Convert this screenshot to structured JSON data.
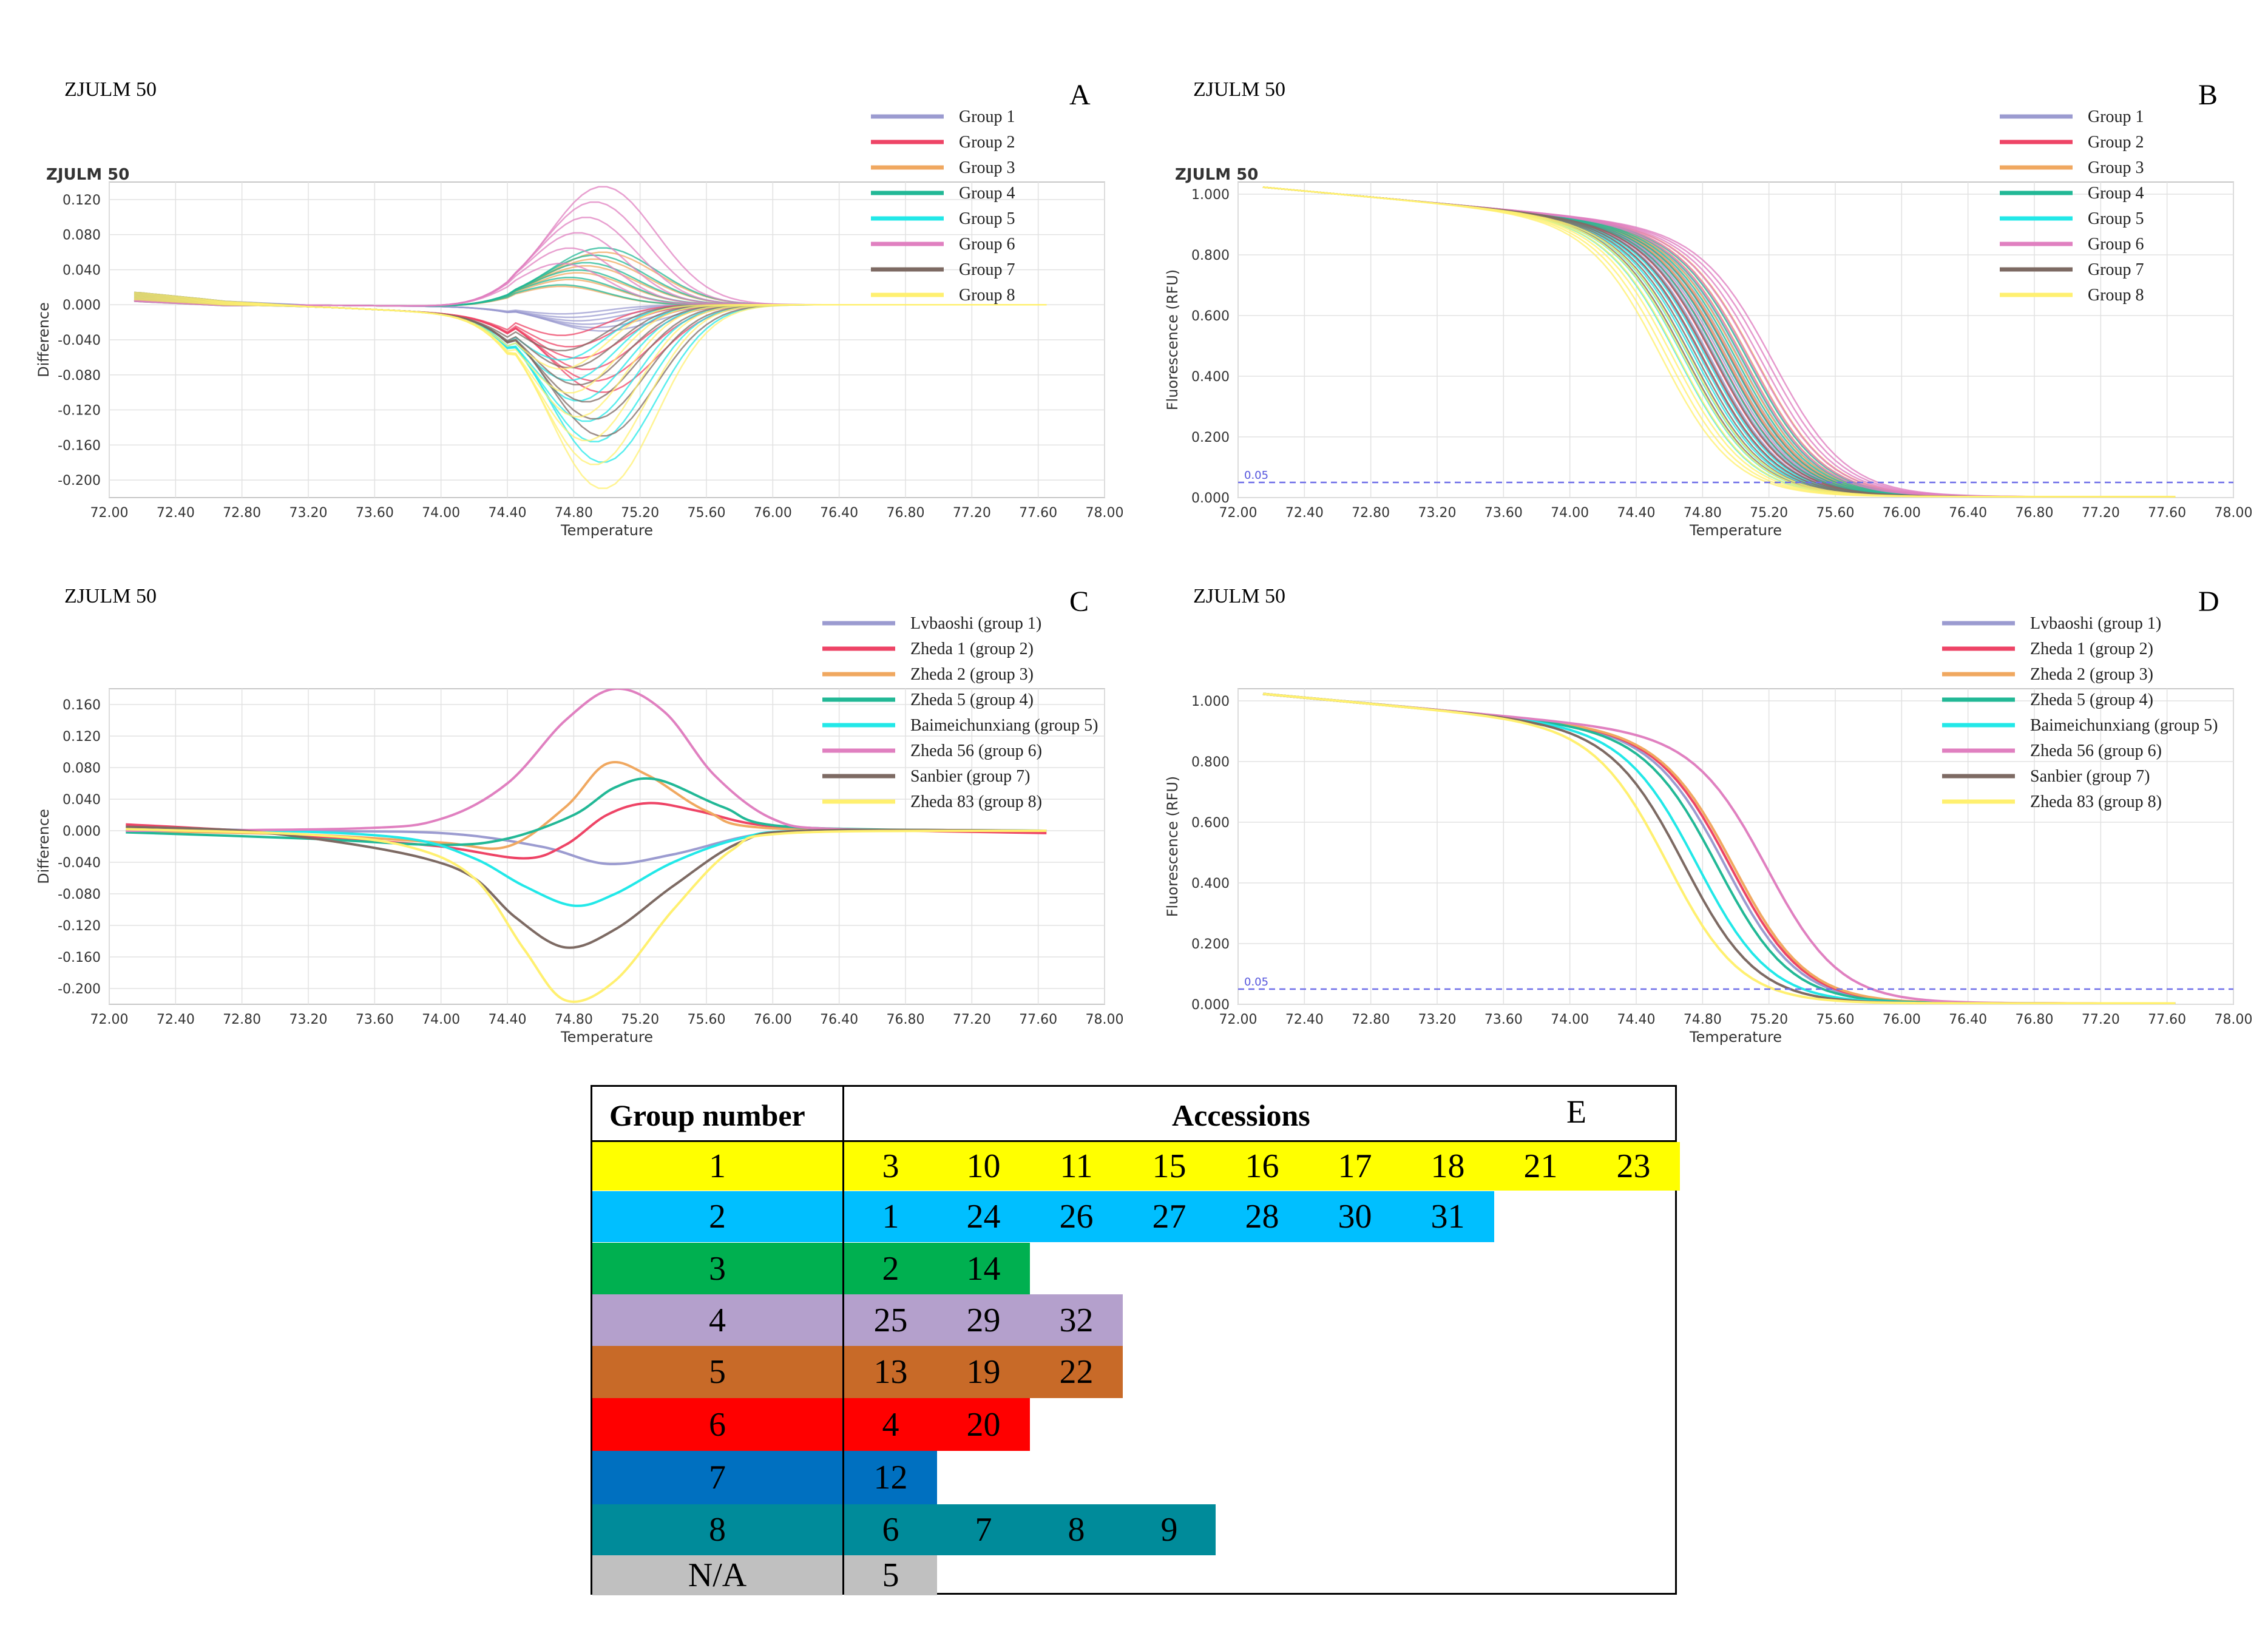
{
  "panels": [
    {
      "id": "A",
      "label": "ZJULM 50",
      "letter": "A",
      "chart_title": "ZJULM 50",
      "xlabel": "Temperature",
      "ylabel": "Difference",
      "xticks": [
        "72.00",
        "72.40",
        "72.80",
        "73.20",
        "73.60",
        "74.00",
        "74.40",
        "74.80",
        "75.20",
        "75.60",
        "76.00",
        "76.40",
        "76.80",
        "77.20",
        "77.60",
        "78.00"
      ],
      "yticks": [
        "0.120",
        "0.080",
        "0.040",
        "0.000",
        "-0.040",
        "-0.080",
        "-0.120",
        "-0.160",
        "-0.200"
      ],
      "legend": [
        "Group 1",
        "Group 2",
        "Group 3",
        "Group 4",
        "Group 5",
        "Group 6",
        "Group 7",
        "Group 8"
      ]
    },
    {
      "id": "B",
      "label": "ZJULM 50",
      "letter": "B",
      "chart_title": "ZJULM 50",
      "xlabel": "Temperature",
      "ylabel": "Fluorescence (RFU)",
      "xticks": [
        "72.00",
        "72.40",
        "72.80",
        "73.20",
        "73.60",
        "74.00",
        "74.40",
        "74.80",
        "75.20",
        "75.60",
        "76.00",
        "76.40",
        "76.80",
        "77.20",
        "77.60",
        "78.00"
      ],
      "yticks": [
        "1.000",
        "0.800",
        "0.600",
        "0.400",
        "0.200",
        "0.000"
      ],
      "threshold_label": "0.05",
      "legend": [
        "Group 1",
        "Group 2",
        "Group 3",
        "Group 4",
        "Group 5",
        "Group 6",
        "Group 7",
        "Group 8"
      ]
    },
    {
      "id": "C",
      "label": "ZJULM 50",
      "letter": "C",
      "chart_title": "",
      "xlabel": "Temperature",
      "ylabel": "Difference",
      "xticks": [
        "72.00",
        "72.40",
        "72.80",
        "73.20",
        "73.60",
        "74.00",
        "74.40",
        "74.80",
        "75.20",
        "75.60",
        "76.00",
        "76.40",
        "76.80",
        "77.20",
        "77.60",
        "78.00"
      ],
      "yticks": [
        "0.160",
        "0.120",
        "0.080",
        "0.040",
        "0.000",
        "-0.040",
        "-0.080",
        "-0.120",
        "-0.160",
        "-0.200"
      ],
      "legend": [
        "Lvbaoshi (group 1)",
        "Zheda 1 (group 2)",
        "Zheda 2 (group 3)",
        "Zheda 5 (group 4)",
        "Baimeichunxiang (group 5)",
        "Zheda 56 (group 6)",
        "Sanbier (group 7)",
        "Zheda 83 (group 8)"
      ]
    },
    {
      "id": "D",
      "label": "ZJULM 50",
      "letter": "D",
      "chart_title": "",
      "xlabel": "Temperature",
      "ylabel": "Fluorescence (RFU)",
      "xticks": [
        "72.00",
        "72.40",
        "72.80",
        "73.20",
        "73.60",
        "74.00",
        "74.40",
        "74.80",
        "75.20",
        "75.60",
        "76.00",
        "76.40",
        "76.80",
        "77.20",
        "77.60",
        "78.00"
      ],
      "yticks": [
        "1.000",
        "0.800",
        "0.600",
        "0.400",
        "0.200",
        "0.000"
      ],
      "threshold_label": "0.05",
      "legend": [
        "Lvbaoshi (group 1)",
        "Zheda 1 (group 2)",
        "Zheda 2 (group 3)",
        "Zheda 5 (group 4)",
        "Baimeichunxiang (group 5)",
        "Zheda 56 (group 6)",
        "Sanbier (group 7)",
        "Zheda 83 (group 8)"
      ]
    }
  ],
  "colors": [
    "#9b9bd0",
    "#ee4466",
    "#f0a860",
    "#22b896",
    "#22e8e8",
    "#e080c0",
    "#7d6a63",
    "#fff070"
  ],
  "chart_data": [
    {
      "panel": "A",
      "type": "line",
      "title": "ZJULM 50",
      "xlabel": "Temperature",
      "ylabel": "Difference",
      "xlim": [
        72.0,
        78.0
      ],
      "ylim": [
        -0.22,
        0.14
      ],
      "peak_temperature": 74.85,
      "series": [
        {
          "name": "Group 1",
          "peak": -0.03
        },
        {
          "name": "Group 2",
          "peak": -0.1
        },
        {
          "name": "Group 3",
          "peak": 0.06
        },
        {
          "name": "Group 4",
          "peak": 0.065
        },
        {
          "name": "Group 5",
          "peak": -0.18
        },
        {
          "name": "Group 6",
          "peak": 0.135
        },
        {
          "name": "Group 7",
          "peak": -0.15
        },
        {
          "name": "Group 8",
          "peak": -0.21
        }
      ]
    },
    {
      "panel": "B",
      "type": "line",
      "title": "ZJULM 50",
      "xlabel": "Temperature",
      "ylabel": "Fluorescence (RFU)",
      "xlim": [
        72.0,
        78.0
      ],
      "ylim": [
        0.0,
        1.04
      ],
      "threshold": 0.05,
      "series": [
        {
          "name": "Group 1",
          "midpoint": 74.95
        },
        {
          "name": "Group 2",
          "midpoint": 74.9
        },
        {
          "name": "Group 3",
          "midpoint": 75.05
        },
        {
          "name": "Group 4",
          "midpoint": 75.0
        },
        {
          "name": "Group 5",
          "midpoint": 74.75
        },
        {
          "name": "Group 6",
          "midpoint": 75.15
        },
        {
          "name": "Group 7",
          "midpoint": 74.8
        },
        {
          "name": "Group 8",
          "midpoint": 74.65
        }
      ]
    },
    {
      "panel": "C",
      "type": "line",
      "xlabel": "Temperature",
      "ylabel": "Difference",
      "xlim": [
        72.0,
        78.0
      ],
      "ylim": [
        -0.22,
        0.18
      ],
      "series": [
        {
          "name": "Lvbaoshi (group 1)",
          "points": [
            [
              72.1,
              0.005
            ],
            [
              73.0,
              0.0
            ],
            [
              74.0,
              -0.003
            ],
            [
              74.6,
              -0.02
            ],
            [
              75.0,
              -0.042
            ],
            [
              75.4,
              -0.03
            ],
            [
              75.9,
              -0.005
            ],
            [
              76.4,
              0.0
            ],
            [
              77.65,
              0.0
            ]
          ]
        },
        {
          "name": "Zheda 1 (group 2)",
          "points": [
            [
              72.1,
              0.008
            ],
            [
              72.8,
              0.0
            ],
            [
              73.4,
              -0.01
            ],
            [
              74.0,
              -0.02
            ],
            [
              74.5,
              -0.035
            ],
            [
              74.75,
              -0.018
            ],
            [
              75.0,
              0.02
            ],
            [
              75.25,
              0.035
            ],
            [
              75.55,
              0.025
            ],
            [
              75.9,
              0.008
            ],
            [
              76.4,
              0.002
            ],
            [
              77.65,
              -0.003
            ]
          ]
        },
        {
          "name": "Zheda 2 (group 3)",
          "points": [
            [
              72.1,
              0.0
            ],
            [
              73.2,
              -0.005
            ],
            [
              74.0,
              -0.015
            ],
            [
              74.4,
              -0.02
            ],
            [
              74.75,
              0.03
            ],
            [
              75.0,
              0.085
            ],
            [
              75.25,
              0.07
            ],
            [
              75.6,
              0.025
            ],
            [
              76.0,
              0.003
            ],
            [
              77.65,
              0.0
            ]
          ]
        },
        {
          "name": "Zheda 5 (group 4)",
          "points": [
            [
              72.1,
              -0.002
            ],
            [
              73.2,
              -0.01
            ],
            [
              74.0,
              -0.018
            ],
            [
              74.4,
              -0.01
            ],
            [
              74.8,
              0.02
            ],
            [
              75.05,
              0.055
            ],
            [
              75.3,
              0.065
            ],
            [
              75.7,
              0.03
            ],
            [
              76.1,
              0.005
            ],
            [
              77.65,
              0.0
            ]
          ]
        },
        {
          "name": "Baimeichunxiang (group 5)",
          "points": [
            [
              72.1,
              0.0
            ],
            [
              73.0,
              0.0
            ],
            [
              73.8,
              -0.01
            ],
            [
              74.2,
              -0.035
            ],
            [
              74.5,
              -0.07
            ],
            [
              74.8,
              -0.095
            ],
            [
              75.05,
              -0.08
            ],
            [
              75.4,
              -0.04
            ],
            [
              75.8,
              -0.01
            ],
            [
              76.2,
              0.0
            ],
            [
              77.65,
              0.0
            ]
          ]
        },
        {
          "name": "Zheda 56 (group 6)",
          "points": [
            [
              72.1,
              0.0
            ],
            [
              73.5,
              0.003
            ],
            [
              74.0,
              0.015
            ],
            [
              74.4,
              0.06
            ],
            [
              74.75,
              0.14
            ],
            [
              75.05,
              0.18
            ],
            [
              75.35,
              0.15
            ],
            [
              75.65,
              0.07
            ],
            [
              76.0,
              0.015
            ],
            [
              76.4,
              0.002
            ],
            [
              77.65,
              0.0
            ]
          ]
        },
        {
          "name": "Sanbier (group 7)",
          "points": [
            [
              72.1,
              0.005
            ],
            [
              72.8,
              0.0
            ],
            [
              73.4,
              -0.015
            ],
            [
              73.9,
              -0.035
            ],
            [
              74.2,
              -0.06
            ],
            [
              74.45,
              -0.11
            ],
            [
              74.75,
              -0.148
            ],
            [
              75.05,
              -0.125
            ],
            [
              75.4,
              -0.07
            ],
            [
              75.8,
              -0.015
            ],
            [
              76.2,
              0.0
            ],
            [
              77.65,
              0.0
            ]
          ]
        },
        {
          "name": "Zheda 83 (group 8)",
          "points": [
            [
              72.1,
              0.002
            ],
            [
              73.2,
              -0.005
            ],
            [
              73.8,
              -0.02
            ],
            [
              74.2,
              -0.06
            ],
            [
              74.5,
              -0.15
            ],
            [
              74.75,
              -0.215
            ],
            [
              75.05,
              -0.19
            ],
            [
              75.4,
              -0.1
            ],
            [
              75.75,
              -0.025
            ],
            [
              76.1,
              -0.003
            ],
            [
              77.65,
              0.0
            ]
          ]
        }
      ]
    },
    {
      "panel": "D",
      "type": "line",
      "xlabel": "Temperature",
      "ylabel": "Fluorescence (RFU)",
      "xlim": [
        72.0,
        78.0
      ],
      "ylim": [
        0.0,
        1.04
      ],
      "threshold": 0.05,
      "series": [
        {
          "name": "Lvbaoshi (group 1)",
          "midpoint": 74.95
        },
        {
          "name": "Zheda 1 (group 2)",
          "midpoint": 74.98
        },
        {
          "name": "Zheda 2 (group 3)",
          "midpoint": 75.0
        },
        {
          "name": "Zheda 5 (group 4)",
          "midpoint": 74.9
        },
        {
          "name": "Baimeichunxiang (group 5)",
          "midpoint": 74.78
        },
        {
          "name": "Zheda 56 (group 6)",
          "midpoint": 75.2
        },
        {
          "name": "Sanbier (group 7)",
          "midpoint": 74.7
        },
        {
          "name": "Zheda 83 (group 8)",
          "midpoint": 74.6
        }
      ]
    },
    {
      "panel": "E",
      "type": "table",
      "label": "E",
      "headers": [
        "Group number",
        "Accessions"
      ],
      "rows": [
        {
          "group": "1",
          "color": "#ffff00",
          "accessions": [
            "3",
            "10",
            "11",
            "15",
            "16",
            "17",
            "18",
            "21",
            "23"
          ]
        },
        {
          "group": "2",
          "color": "#00bfff",
          "accessions": [
            "1",
            "24",
            "26",
            "27",
            "28",
            "30",
            "31"
          ]
        },
        {
          "group": "3",
          "color": "#00b050",
          "accessions": [
            "2",
            "14"
          ]
        },
        {
          "group": "4",
          "color": "#b4a0cc",
          "accessions": [
            "25",
            "29",
            "32"
          ]
        },
        {
          "group": "5",
          "color": "#c86a28",
          "accessions": [
            "13",
            "19",
            "22"
          ]
        },
        {
          "group": "6",
          "color": "#ff0000",
          "accessions": [
            "4",
            "20"
          ]
        },
        {
          "group": "7",
          "color": "#0070c0",
          "accessions": [
            "12"
          ]
        },
        {
          "group": "8",
          "color": "#008b9a",
          "accessions": [
            "6",
            "7",
            "8",
            "9"
          ]
        },
        {
          "group": "N/A",
          "color": "#c0c0c0",
          "accessions": [
            "5"
          ]
        }
      ]
    }
  ]
}
